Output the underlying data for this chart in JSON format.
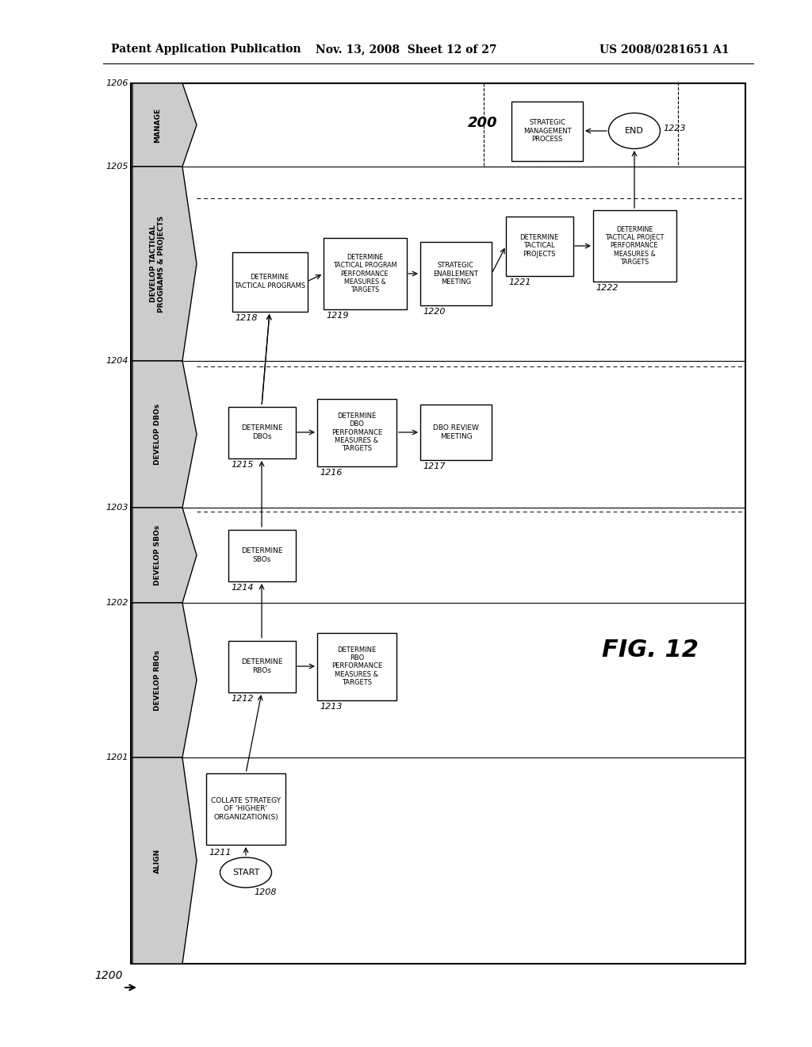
{
  "title_left": "Patent Application Publication",
  "title_center": "Nov. 13, 2008  Sheet 12 of 27",
  "title_right": "US 2008/0281651 A1",
  "fig_label": "FIG. 12",
  "bg_color": "#ffffff"
}
